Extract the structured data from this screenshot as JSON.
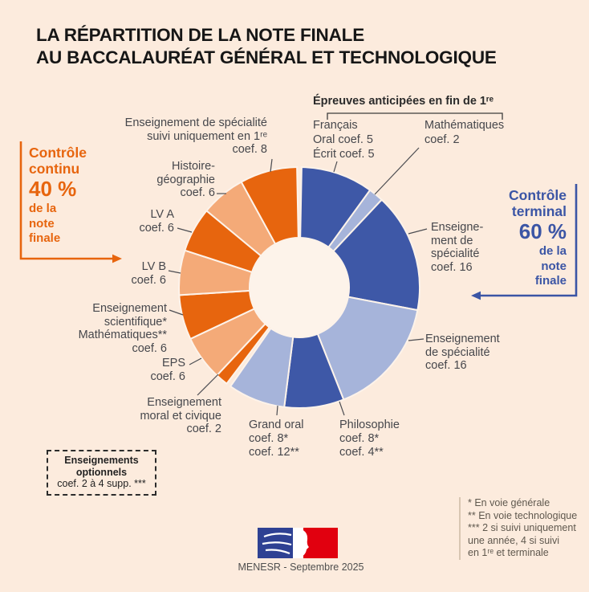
{
  "title": {
    "line1": "LA RÉPARTITION DE LA NOTE FINALE",
    "line2": "AU BACCALAURÉAT GÉNÉRAL ET TECHNOLOGIQUE"
  },
  "left_callout": {
    "lines_bold": [
      "Contrôle",
      "continu"
    ],
    "pct": "40 %",
    "lines_small": [
      "de la",
      "note",
      "finale"
    ]
  },
  "right_callout": {
    "lines_bold": [
      "Contrôle",
      "terminal"
    ],
    "pct": "60 %",
    "lines_small": [
      "de la",
      "note",
      "finale"
    ]
  },
  "anticipated": {
    "heading": "Épreuves anticipées en fin de 1ʳᵉ",
    "francais": [
      "Français",
      "Oral coef. 5",
      "Écrit coef. 5"
    ],
    "mathematiques": [
      "Mathématiques",
      "coef. 2"
    ]
  },
  "labels": {
    "spe_premiere": [
      "Enseignement de spécialité",
      "suivi uniquement en 1ʳᵉ",
      "coef. 8"
    ],
    "histoire": [
      "Histoire-",
      "géographie",
      "coef. 6"
    ],
    "lva": [
      "LV A",
      "coef. 6"
    ],
    "lvb": [
      "LV B",
      "coef. 6"
    ],
    "sciences": [
      "Enseignement",
      "scientifique*",
      "Mathématiques**",
      "coef. 6"
    ],
    "eps": [
      "EPS",
      "coef. 6"
    ],
    "emc": [
      "Enseignement",
      "moral et civique",
      "coef. 2"
    ],
    "grand_oral": [
      "Grand oral",
      "coef. 8*",
      "coef. 12**"
    ],
    "philosophie": [
      "Philosophie",
      "coef. 8*",
      "coef. 4**"
    ],
    "spe_terminal_haut": [
      "Enseigne-",
      "ment de",
      "spécialité",
      "coef. 16"
    ],
    "spe_terminal_bas": [
      "Enseignement",
      "de spécialité",
      "coef. 16"
    ]
  },
  "optional_box": {
    "line1": "Enseignements",
    "line2": "optionnels",
    "line3": "coef. 2 à 4 supp. ***"
  },
  "footnotes": [
    "* En voie générale",
    "** En voie technologique",
    "*** 2 si suivi uniquement",
    "une année, 4 si suivi",
    "en 1ʳᵉ et terminale"
  ],
  "footer": {
    "caption": "MENESR - Septembre 2025"
  },
  "colors": {
    "background": "#fcebdd",
    "hole": "#fdf3ea",
    "control_continu_orange": "#e7650e",
    "continu_light_orange": "#f4aa78",
    "control_terminal_blue": "#3e58a7",
    "terminal_light_blue": "#a6b4da",
    "flag_blue": "#2e4193",
    "flag_red": "#e1000f"
  },
  "chart_data": {
    "type": "pie",
    "subtype": "donut",
    "title": "Répartition de la note finale au baccalauréat général et technologique",
    "units": "coefficients (sur 100)",
    "start_angle_deg_from_top": 0,
    "direction": "clockwise",
    "inner_radius_ratio": 0.41,
    "groups": [
      {
        "name": "Contrôle terminal",
        "share_pct": 60
      },
      {
        "name": "Contrôle continu",
        "share_pct": 40
      }
    ],
    "segments": [
      {
        "label": "Français",
        "coef_text": "Oral coef. 5 / Écrit coef. 5",
        "value": 10,
        "group": "Contrôle terminal",
        "color": "#3e58a7"
      },
      {
        "label": "Mathématiques",
        "coef_text": "coef. 2",
        "value": 2,
        "group": "Contrôle terminal",
        "color": "#a6b4da"
      },
      {
        "label": "Enseignement de spécialité",
        "coef_text": "coef. 16",
        "value": 16,
        "group": "Contrôle terminal",
        "color": "#3e58a7"
      },
      {
        "label": "Enseignement de spécialité",
        "coef_text": "coef. 16",
        "value": 16,
        "group": "Contrôle terminal",
        "color": "#a6b4da"
      },
      {
        "label": "Philosophie",
        "coef_text": "coef. 8* / coef. 4**",
        "value": 8,
        "group": "Contrôle terminal",
        "color": "#3e58a7"
      },
      {
        "label": "Grand oral",
        "coef_text": "coef. 8* / coef. 12**",
        "value": 8,
        "group": "Contrôle terminal",
        "color": "#a6b4da"
      },
      {
        "label": "Enseignement moral et civique",
        "coef_text": "coef. 2",
        "value": 2,
        "group": "Contrôle continu",
        "color": "#e7650e"
      },
      {
        "label": "EPS",
        "coef_text": "coef. 6",
        "value": 6,
        "group": "Contrôle continu",
        "color": "#f4aa78"
      },
      {
        "label": "Enseignement scientifique* / Mathématiques**",
        "coef_text": "coef. 6",
        "value": 6,
        "group": "Contrôle continu",
        "color": "#e7650e"
      },
      {
        "label": "LV B",
        "coef_text": "coef. 6",
        "value": 6,
        "group": "Contrôle continu",
        "color": "#f4aa78"
      },
      {
        "label": "LV A",
        "coef_text": "coef. 6",
        "value": 6,
        "group": "Contrôle continu",
        "color": "#e7650e"
      },
      {
        "label": "Histoire-géographie",
        "coef_text": "coef. 6",
        "value": 6,
        "group": "Contrôle continu",
        "color": "#f4aa78"
      },
      {
        "label": "Enseignement de spécialité suivi uniquement en 1ʳᵉ",
        "coef_text": "coef. 8",
        "value": 8,
        "group": "Contrôle continu",
        "color": "#e7650e"
      }
    ]
  }
}
